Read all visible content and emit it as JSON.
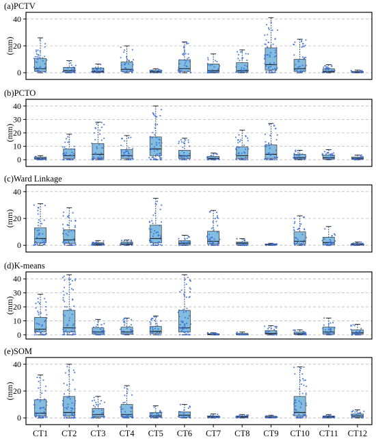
{
  "chart_data": {
    "type": "box",
    "ylabel": "(mm)",
    "categories": [
      "CT1",
      "CT2",
      "CT3",
      "CT4",
      "CT5",
      "CT6",
      "CT7",
      "CT8",
      "CT9",
      "CT10",
      "CT11",
      "CT12"
    ],
    "panels": [
      {
        "title": "(a)PCTV",
        "ylim": [
          -5,
          45
        ],
        "yticks": [
          0,
          20,
          40
        ],
        "grid": true,
        "boxes": [
          {
            "min": 0,
            "q1": 1,
            "median": 3,
            "q3": 10.5,
            "max": 26
          },
          {
            "min": 0,
            "q1": 0.5,
            "median": 1.5,
            "q3": 4,
            "max": 9
          },
          {
            "min": 0,
            "q1": 0.3,
            "median": 1,
            "q3": 3.5,
            "max": 6.5
          },
          {
            "min": 0,
            "q1": 1,
            "median": 2.5,
            "q3": 8,
            "max": 20
          },
          {
            "min": 0,
            "q1": 0.2,
            "median": 0.8,
            "q3": 2,
            "max": 3
          },
          {
            "min": 0,
            "q1": 1,
            "median": 3,
            "q3": 9.5,
            "max": 23
          },
          {
            "min": 0,
            "q1": 0.5,
            "median": 1.5,
            "q3": 6.5,
            "max": 14
          },
          {
            "min": 0,
            "q1": 0.5,
            "median": 1.5,
            "q3": 7.5,
            "max": 17
          },
          {
            "min": 0,
            "q1": 2,
            "median": 6,
            "q3": 18.5,
            "max": 41
          },
          {
            "min": 0,
            "q1": 1,
            "median": 3,
            "q3": 10,
            "max": 25
          },
          {
            "min": 0,
            "q1": 0.3,
            "median": 1,
            "q3": 3,
            "max": 6
          },
          {
            "min": 0,
            "q1": 0.1,
            "median": 0.5,
            "q3": 1,
            "max": 2
          }
        ]
      },
      {
        "title": "(b)PCTO",
        "ylim": [
          -5,
          45
        ],
        "yticks": [
          0,
          10,
          20,
          30,
          40
        ],
        "grid": true,
        "boxes": [
          {
            "min": 0,
            "q1": 0.3,
            "median": 1,
            "q3": 2,
            "max": 3
          },
          {
            "min": 0,
            "q1": 1,
            "median": 3,
            "q3": 8,
            "max": 19
          },
          {
            "min": 0,
            "q1": 1,
            "median": 4,
            "q3": 12,
            "max": 28
          },
          {
            "min": 0,
            "q1": 1,
            "median": 3,
            "q3": 7.5,
            "max": 18
          },
          {
            "min": 0,
            "q1": 3,
            "median": 8,
            "q3": 17,
            "max": 40
          },
          {
            "min": 0,
            "q1": 1,
            "median": 3,
            "q3": 7,
            "max": 16
          },
          {
            "min": 0,
            "q1": 0.5,
            "median": 1,
            "q3": 2.5,
            "max": 5
          },
          {
            "min": 0,
            "q1": 1,
            "median": 3,
            "q3": 9.5,
            "max": 22
          },
          {
            "min": 0,
            "q1": 1,
            "median": 4,
            "q3": 11,
            "max": 27
          },
          {
            "min": 0,
            "q1": 0.5,
            "median": 1.5,
            "q3": 4,
            "max": 7
          },
          {
            "min": 0,
            "q1": 0.5,
            "median": 1.5,
            "q3": 3.5,
            "max": 7.5
          },
          {
            "min": 0,
            "q1": 0.3,
            "median": 1,
            "q3": 2,
            "max": 3.5
          }
        ]
      },
      {
        "title": "(c)Ward Linkage",
        "ylim": [
          -5,
          45
        ],
        "yticks": [
          0,
          20,
          40
        ],
        "grid": true,
        "boxes": [
          {
            "min": 0,
            "q1": 2,
            "median": 5,
            "q3": 13,
            "max": 31
          },
          {
            "min": 0,
            "q1": 1.5,
            "median": 4,
            "q3": 11.5,
            "max": 28
          },
          {
            "min": 0,
            "q1": 0.3,
            "median": 1,
            "q3": 2,
            "max": 3.5
          },
          {
            "min": 0,
            "q1": 0.5,
            "median": 1,
            "q3": 2.5,
            "max": 4
          },
          {
            "min": 0,
            "q1": 2,
            "median": 5,
            "q3": 15,
            "max": 35
          },
          {
            "min": 0,
            "q1": 0.5,
            "median": 1.5,
            "q3": 3.5,
            "max": 7.5
          },
          {
            "min": 0,
            "q1": 1,
            "median": 3,
            "q3": 10.5,
            "max": 26
          },
          {
            "min": 0,
            "q1": 0.5,
            "median": 1.5,
            "q3": 2.5,
            "max": 5
          },
          {
            "min": 0,
            "q1": 0.2,
            "median": 0.5,
            "q3": 1,
            "max": 1.5
          },
          {
            "min": 0,
            "q1": 1,
            "median": 3,
            "q3": 10,
            "max": 22
          },
          {
            "min": 0,
            "q1": 0.5,
            "median": 2,
            "q3": 6,
            "max": 14
          },
          {
            "min": 0,
            "q1": 0.2,
            "median": 0.6,
            "q3": 1.5,
            "max": 2.5
          }
        ]
      },
      {
        "title": "(d)K-means",
        "ylim": [
          -3,
          45
        ],
        "yticks": [
          0,
          10,
          20,
          30,
          40
        ],
        "grid": true,
        "boxes": [
          {
            "min": 0,
            "q1": 2,
            "median": 4,
            "q3": 12.5,
            "max": 29
          },
          {
            "min": 0,
            "q1": 2,
            "median": 5,
            "q3": 17.5,
            "max": 43
          },
          {
            "min": 0,
            "q1": 0.5,
            "median": 2,
            "q3": 5,
            "max": 11
          },
          {
            "min": 0,
            "q1": 0.5,
            "median": 2,
            "q3": 5.5,
            "max": 12
          },
          {
            "min": 0,
            "q1": 1,
            "median": 2.5,
            "q3": 6,
            "max": 13.5
          },
          {
            "min": 0,
            "q1": 2,
            "median": 5,
            "q3": 17.5,
            "max": 43
          },
          {
            "min": 0,
            "q1": 0,
            "median": 0.3,
            "q3": 0.7,
            "max": 1.5
          },
          {
            "min": 0,
            "q1": 0,
            "median": 0.3,
            "q3": 1,
            "max": 2
          },
          {
            "min": 0,
            "q1": 0.5,
            "median": 1,
            "q3": 3,
            "max": 6.5
          },
          {
            "min": 0,
            "q1": 0.3,
            "median": 0.8,
            "q3": 2,
            "max": 3.5
          },
          {
            "min": 0,
            "q1": 0.5,
            "median": 2,
            "q3": 5.5,
            "max": 12
          },
          {
            "min": 0,
            "q1": 0.5,
            "median": 1.5,
            "q3": 3.5,
            "max": 7.5
          }
        ]
      },
      {
        "title": "(e)SOM",
        "ylim": [
          -5,
          45
        ],
        "yticks": [
          0,
          20,
          40
        ],
        "grid": true,
        "boxes": [
          {
            "min": 0,
            "q1": 1.5,
            "median": 3.5,
            "q3": 13.5,
            "max": 32
          },
          {
            "min": 0,
            "q1": 1.5,
            "median": 4,
            "q3": 16,
            "max": 40
          },
          {
            "min": 0,
            "q1": 1,
            "median": 2.5,
            "q3": 7,
            "max": 16
          },
          {
            "min": 0,
            "q1": 1,
            "median": 2.5,
            "q3": 10,
            "max": 24
          },
          {
            "min": 0,
            "q1": 0.5,
            "median": 1.5,
            "q3": 4,
            "max": 9
          },
          {
            "min": 0,
            "q1": 0.5,
            "median": 2,
            "q3": 4.5,
            "max": 10
          },
          {
            "min": 0,
            "q1": 0.2,
            "median": 0.8,
            "q3": 1.5,
            "max": 3
          },
          {
            "min": 0,
            "q1": 0.3,
            "median": 0.8,
            "q3": 1.5,
            "max": 2.5
          },
          {
            "min": 0,
            "q1": 0.2,
            "median": 0.6,
            "q3": 1.2,
            "max": 2
          },
          {
            "min": 0,
            "q1": 1.5,
            "median": 4,
            "q3": 16,
            "max": 38
          },
          {
            "min": 0,
            "q1": 0.3,
            "median": 0.8,
            "q3": 1.5,
            "max": 2.5
          },
          {
            "min": 0,
            "q1": 0.5,
            "median": 1.5,
            "q3": 3,
            "max": 6
          }
        ]
      }
    ],
    "colors": {
      "box_fill": "#82bde0",
      "points": "#3a6fd6",
      "grid": "#b8b8b8",
      "frame": "#000000"
    }
  }
}
